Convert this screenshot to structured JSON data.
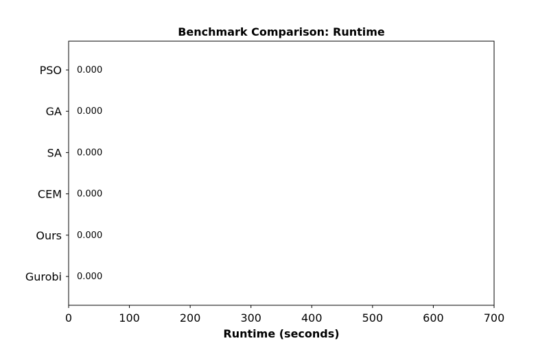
{
  "chart_data": {
    "type": "bar",
    "orientation": "horizontal",
    "title": "Benchmark Comparison: Runtime",
    "xlabel": "Runtime (seconds)",
    "ylabel": "",
    "categories": [
      "PSO",
      "GA",
      "SA",
      "CEM",
      "Ours",
      "Gurobi"
    ],
    "values": [
      0.0,
      0.0,
      0.0,
      0.0,
      0.0,
      0.0
    ],
    "value_labels": [
      "0.000",
      "0.000",
      "0.000",
      "0.000",
      "0.000",
      "0.000"
    ],
    "xlim": [
      0,
      700
    ],
    "xticks": [
      0,
      100,
      200,
      300,
      400,
      500,
      600,
      700
    ],
    "xtick_labels": [
      "0",
      "100",
      "200",
      "300",
      "400",
      "500",
      "600",
      "700"
    ],
    "grid": false,
    "legend": "none",
    "bar_color": "#1f77b4"
  }
}
